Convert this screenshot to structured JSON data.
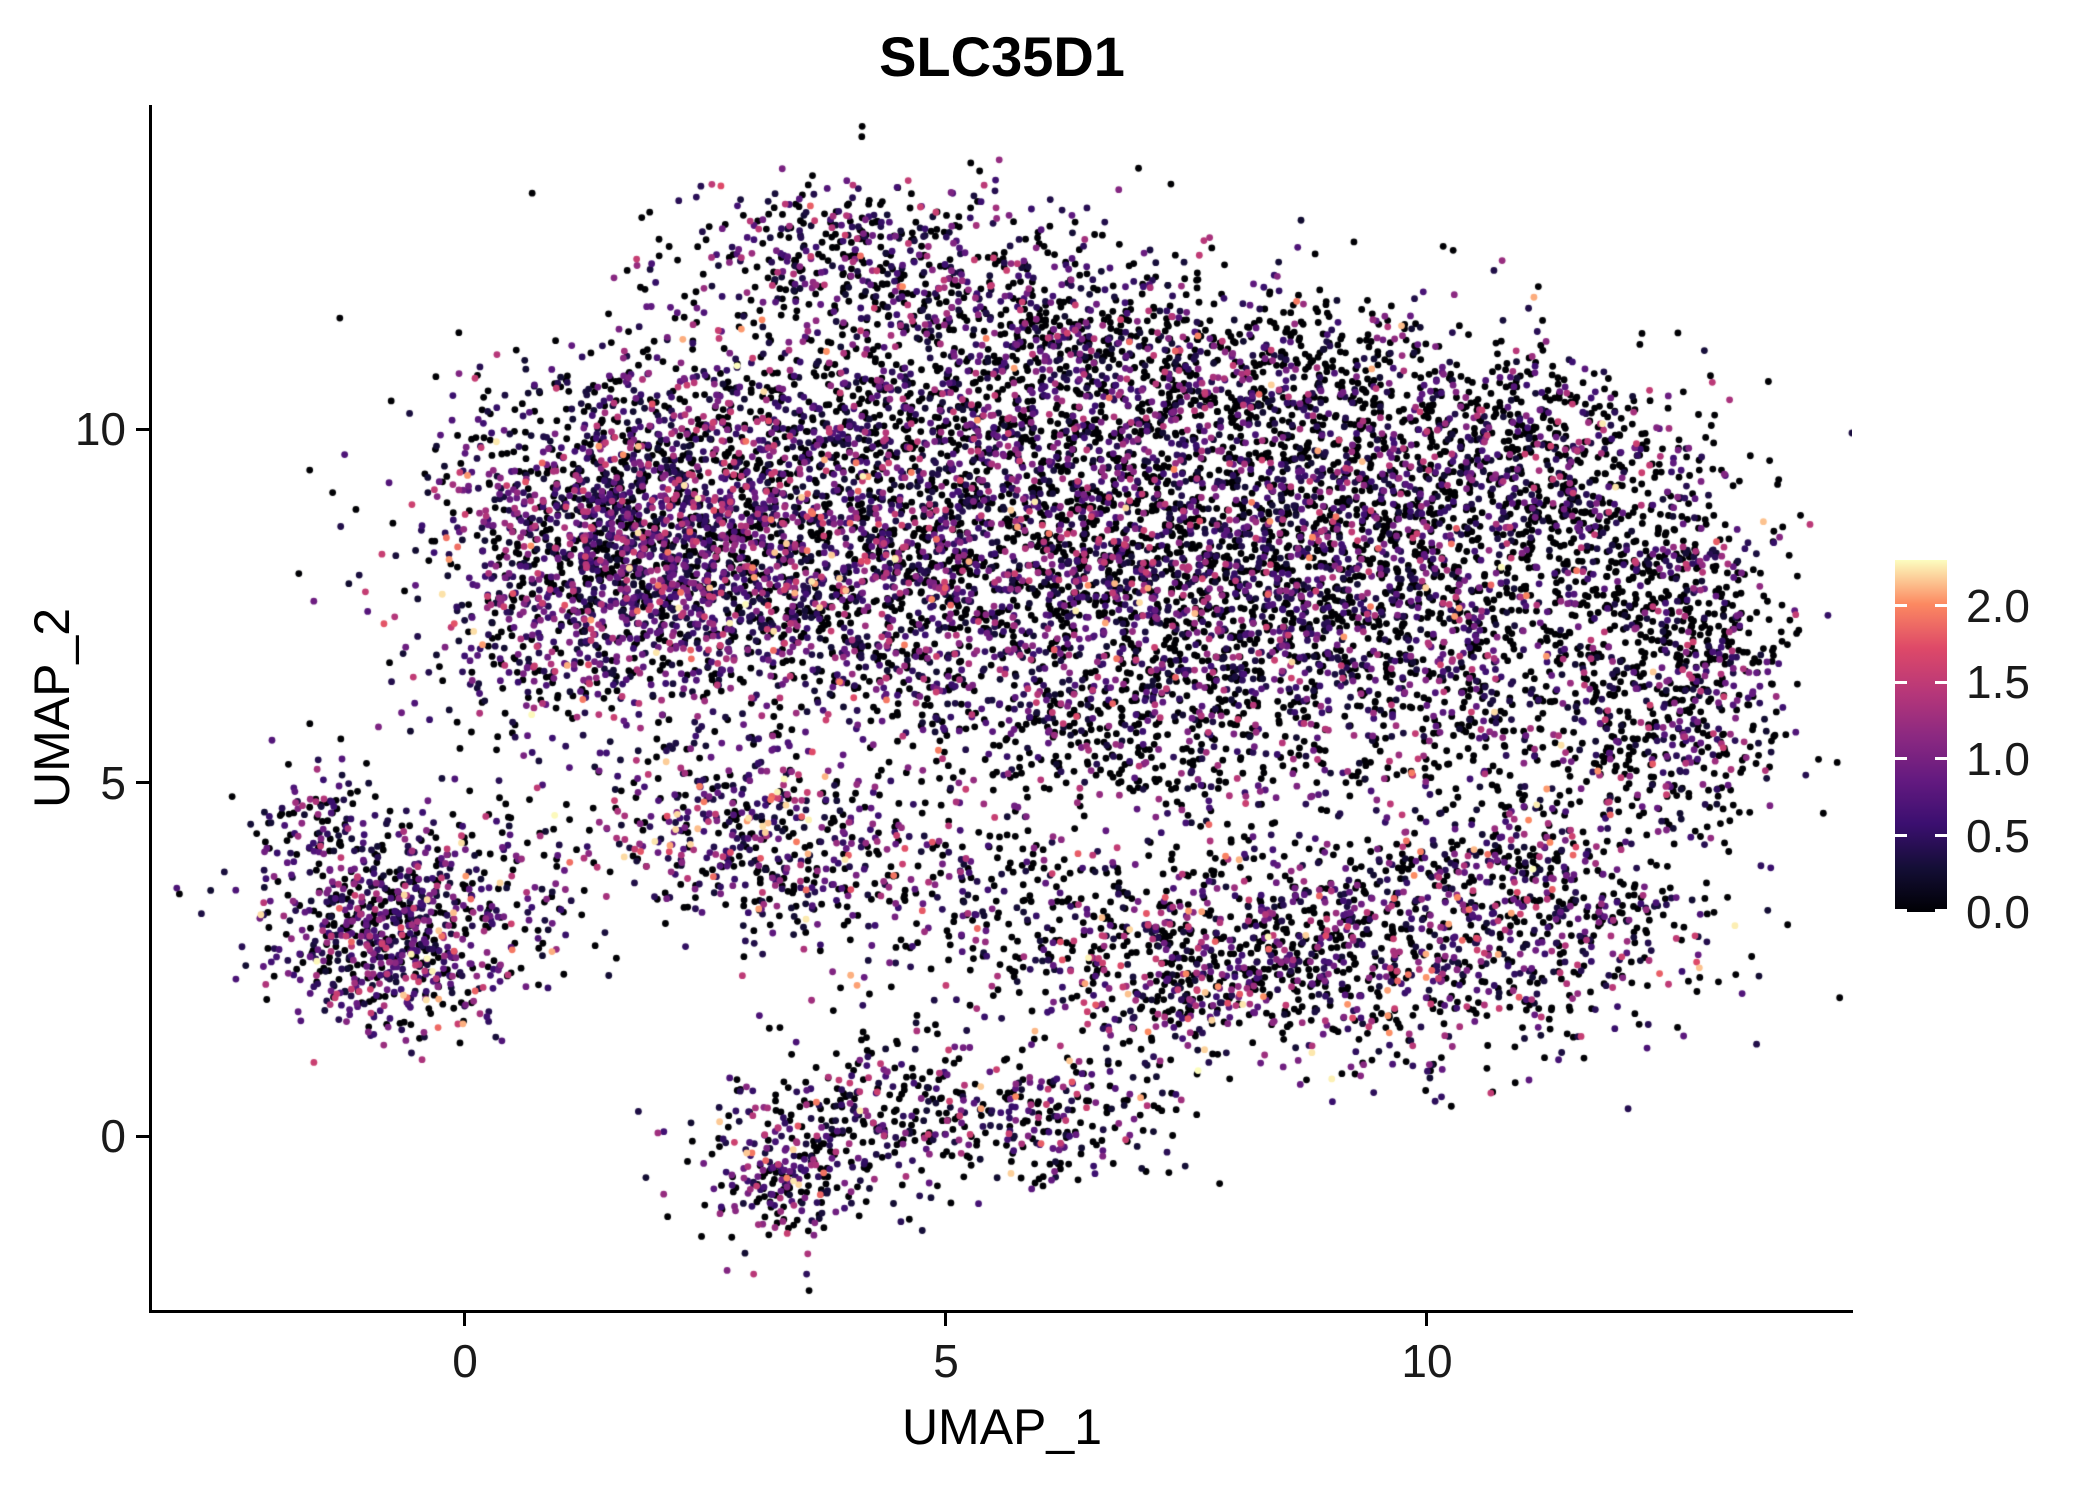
{
  "chart_data": {
    "type": "scatter",
    "title": "SLC35D1",
    "xlabel": "UMAP_1",
    "ylabel": "UMAP_2",
    "xlim": [
      -3.3,
      14.5
    ],
    "ylim": [
      -2.6,
      14.6
    ],
    "grid": false,
    "x_ticks": [
      {
        "value": 0,
        "label": "0"
      },
      {
        "value": 5,
        "label": "5"
      },
      {
        "value": 10,
        "label": "10"
      }
    ],
    "y_ticks": [
      {
        "value": 0,
        "label": "0"
      },
      {
        "value": 5,
        "label": "5"
      },
      {
        "value": 10,
        "label": "10"
      }
    ],
    "legend": {
      "position": "right",
      "vmin": 0.0,
      "vmax": 2.3,
      "ticks": [
        {
          "value": 2.0,
          "label": "2.0"
        },
        {
          "value": 1.5,
          "label": "1.5"
        },
        {
          "value": 1.0,
          "label": "1.0"
        },
        {
          "value": 0.5,
          "label": "0.5"
        },
        {
          "value": 0.0,
          "label": "0.0"
        }
      ]
    },
    "colormap": {
      "name": "magma",
      "stops": [
        "#000004",
        "#140E36",
        "#3B0F70",
        "#641A80",
        "#8C2981",
        "#B73779",
        "#DE4968",
        "#FC8961",
        "#FCFDBF"
      ]
    },
    "points": {
      "seed": 42,
      "radius_px": 3.4,
      "cluster_fields": [
        "center_x",
        "center_y",
        "sd_x",
        "sd_y",
        "n_points",
        "zero_fraction",
        "high_expr_fraction"
      ],
      "clusters": [
        [
          1.1,
          7.9,
          0.9,
          1.2,
          800,
          0.32,
          0.02
        ],
        [
          2.6,
          9.4,
          1.2,
          1.1,
          1000,
          0.4,
          0.015
        ],
        [
          3.4,
          7.4,
          1.2,
          1.0,
          850,
          0.36,
          0.03
        ],
        [
          2.0,
          8.4,
          0.8,
          0.8,
          500,
          0.35,
          0.02
        ],
        [
          5.0,
          9.9,
          1.3,
          1.1,
          850,
          0.52,
          0.012
        ],
        [
          5.6,
          7.9,
          1.3,
          1.1,
          850,
          0.48,
          0.02
        ],
        [
          7.3,
          9.2,
          1.4,
          1.2,
          950,
          0.55,
          0.012
        ],
        [
          7.6,
          7.2,
          1.2,
          0.9,
          600,
          0.52,
          0.015
        ],
        [
          9.4,
          8.7,
          1.2,
          1.1,
          850,
          0.58,
          0.01
        ],
        [
          9.8,
          6.7,
          1.1,
          0.9,
          500,
          0.55,
          0.012
        ],
        [
          11.4,
          8.6,
          0.9,
          1.0,
          550,
          0.62,
          0.008
        ],
        [
          12.6,
          7.4,
          0.55,
          1.1,
          330,
          0.68,
          0.006
        ],
        [
          4.2,
          12.5,
          1.05,
          0.55,
          430,
          0.42,
          0.02
        ],
        [
          6.2,
          11.3,
          1.2,
          0.65,
          420,
          0.52,
          0.012
        ],
        [
          8.6,
          10.8,
          1.2,
          0.6,
          380,
          0.55,
          0.01
        ],
        [
          10.9,
          10.0,
          0.9,
          0.55,
          280,
          0.6,
          0.008
        ],
        [
          6.8,
          5.6,
          1.5,
          0.7,
          450,
          0.5,
          0.02
        ],
        [
          11.9,
          5.6,
          0.9,
          0.7,
          300,
          0.55,
          0.02
        ],
        [
          13.0,
          6.3,
          0.4,
          0.9,
          180,
          0.6,
          0.01
        ],
        [
          -0.75,
          2.8,
          0.7,
          0.65,
          700,
          0.28,
          0.035
        ],
        [
          -0.2,
          3.9,
          1.0,
          0.6,
          180,
          0.45,
          0.02
        ],
        [
          -1.6,
          4.4,
          0.3,
          0.5,
          80,
          0.5,
          0.01
        ],
        [
          2.7,
          4.5,
          0.7,
          0.5,
          220,
          0.28,
          0.1
        ],
        [
          3.6,
          3.9,
          0.8,
          0.5,
          200,
          0.35,
          0.08
        ],
        [
          5.3,
          3.3,
          1.5,
          0.7,
          300,
          0.62,
          0.02
        ],
        [
          9.2,
          2.7,
          1.7,
          0.85,
          1100,
          0.48,
          0.045
        ],
        [
          7.4,
          2.3,
          0.9,
          0.55,
          280,
          0.52,
          0.03
        ],
        [
          11.2,
          3.6,
          0.9,
          0.8,
          350,
          0.52,
          0.03
        ],
        [
          4.5,
          0.2,
          1.05,
          0.55,
          420,
          0.42,
          0.03
        ],
        [
          3.3,
          -0.7,
          0.45,
          0.5,
          160,
          0.38,
          0.04
        ],
        [
          6.2,
          0.3,
          0.6,
          0.45,
          130,
          0.5,
          0.02
        ]
      ]
    }
  }
}
